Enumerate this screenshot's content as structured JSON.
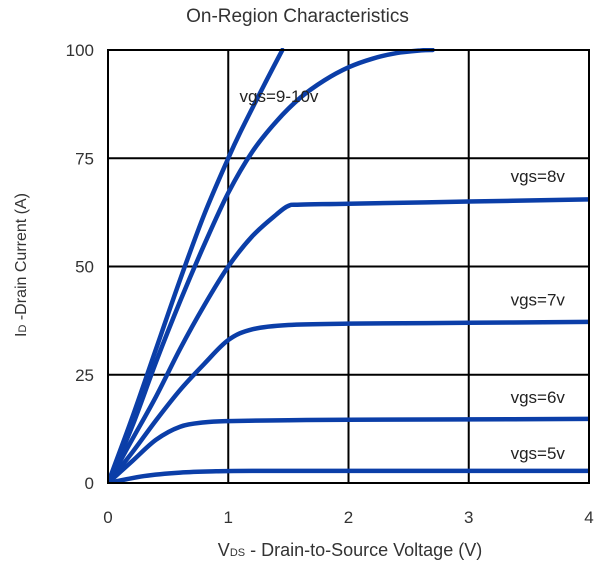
{
  "chart_data": {
    "type": "line",
    "title": "On-Region Characteristics",
    "ylabel": {
      "main": "I",
      "sub": "D",
      "rest": " -Drain Current (A)"
    },
    "xlabel": {
      "main": "V",
      "sub": "DS",
      "rest": " - Drain-to-Source Voltage (V)"
    },
    "xlim": [
      0,
      4
    ],
    "ylim": [
      0,
      100
    ],
    "xticks": [
      0,
      1,
      2,
      3,
      4
    ],
    "yticks": [
      0,
      25,
      50,
      75,
      100
    ],
    "grid": true,
    "series_color": "#0b3ea8",
    "series": [
      {
        "name": "vgs=5v",
        "x": [
          0,
          0.3,
          0.6,
          0.9,
          1.2,
          2,
          3,
          4
        ],
        "y": [
          0,
          1.6,
          2.4,
          2.7,
          2.8,
          2.8,
          2.8,
          2.8
        ]
      },
      {
        "name": "vgs=6v",
        "x": [
          0,
          0.2,
          0.4,
          0.6,
          0.8,
          1,
          1.5,
          2,
          3,
          4
        ],
        "y": [
          0,
          5,
          10,
          13,
          14,
          14.3,
          14.5,
          14.6,
          14.7,
          14.8
        ]
      },
      {
        "name": "vgs=7v",
        "x": [
          0,
          0.2,
          0.4,
          0.6,
          0.8,
          1,
          1.2,
          1.5,
          2,
          3,
          4
        ],
        "y": [
          0,
          7,
          14.5,
          21.5,
          27.5,
          33,
          35.5,
          36.5,
          36.8,
          37,
          37.2
        ]
      },
      {
        "name": "vgs=8v",
        "x": [
          0,
          0.2,
          0.4,
          0.6,
          0.8,
          1,
          1.2,
          1.4,
          1.5,
          1.6,
          2,
          3,
          4
        ],
        "y": [
          0,
          10,
          20,
          31,
          41,
          50,
          57,
          62,
          64,
          64.3,
          64.5,
          65,
          65.5
        ]
      },
      {
        "name": "vgs=9v",
        "x": [
          0,
          0.2,
          0.4,
          0.6,
          0.8,
          1,
          1.2,
          1.4,
          1.6,
          1.8,
          2,
          2.2,
          2.4,
          2.6,
          2.7
        ],
        "y": [
          0,
          13,
          28,
          42,
          55,
          67,
          76.5,
          83.5,
          89,
          93,
          96,
          98,
          99.3,
          99.9,
          100
        ]
      },
      {
        "name": "vgs=10v",
        "x": [
          0,
          0.2,
          0.4,
          0.6,
          0.8,
          1,
          1.1,
          1.3,
          1.45
        ],
        "y": [
          0,
          15,
          31,
          47,
          62,
          75,
          81,
          92,
          100
        ]
      }
    ],
    "annotations": [
      "vgs=9-10v",
      "vgs=8v",
      "vgs=7v",
      "vgs=6v",
      "vgs=5v"
    ]
  }
}
